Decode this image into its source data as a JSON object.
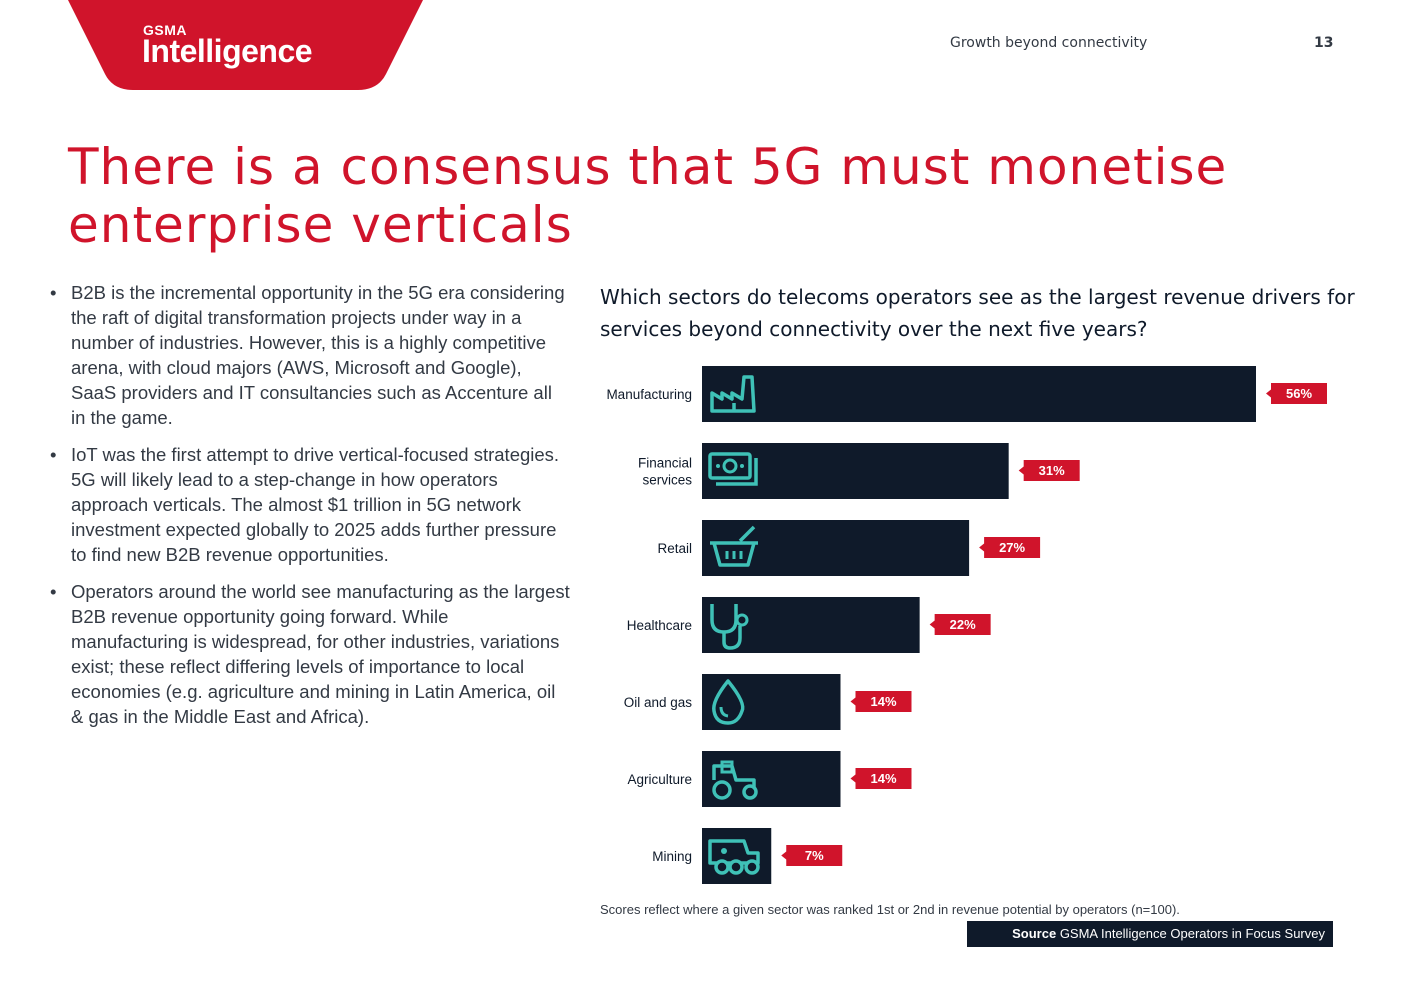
{
  "header": {
    "logo_top": "GSMA",
    "logo_bottom": "Intelligence",
    "section_title": "Growth beyond connectivity",
    "page_number": "13"
  },
  "colors": {
    "brand_red": "#d0142b",
    "bar_navy": "#0f1a2a",
    "icon_teal": "#3fc1b7"
  },
  "title": "There is a consensus that 5G must monetise enterprise verticals",
  "bullets": [
    "B2B is the incremental opportunity in the 5G era considering the raft of digital transformation projects under way in a number of industries. However, this is a highly competitive arena, with cloud majors (AWS, Microsoft and Google), SaaS providers and IT consultancies such as Accenture all in the game.",
    "IoT was the first attempt to drive vertical-focused strategies. 5G will likely lead to a step-change in how operators approach verticals. The almost $1 trillion in 5G network investment expected globally to 2025 adds further pressure to find new B2B revenue opportunities.",
    "Operators around the world see manufacturing as the largest B2B revenue opportunity going forward. While manufacturing is widespread, for other industries, variations exist; these reflect differing levels of importance to local economies (e.g. agriculture and mining in Latin America, oil & gas in the Middle East and Africa)."
  ],
  "chart_data": {
    "type": "bar",
    "orientation": "horizontal",
    "title": "Which sectors do telecoms operators see as the largest revenue drivers for services beyond connectivity over the next five years?",
    "categories": [
      "Manufacturing",
      "Financial services",
      "Retail",
      "Healthcare",
      "Oil and gas",
      "Agriculture",
      "Mining"
    ],
    "category_lines": [
      [
        "Manufacturing"
      ],
      [
        "Financial",
        "services"
      ],
      [
        "Retail"
      ],
      [
        "Healthcare"
      ],
      [
        "Oil and gas"
      ],
      [
        "Agriculture"
      ],
      [
        "Mining"
      ]
    ],
    "values": [
      56,
      31,
      27,
      22,
      14,
      14,
      7
    ],
    "value_labels": [
      "56%",
      "31%",
      "27%",
      "22%",
      "14%",
      "14%",
      "7%"
    ],
    "icons": [
      "factory-icon",
      "money-icon",
      "basket-icon",
      "stethoscope-icon",
      "oil-drop-icon",
      "tractor-icon",
      "mining-truck-icon"
    ],
    "xlim": [
      0,
      56
    ],
    "unit": "%",
    "footnote": "Scores reflect where a given sector was ranked 1st or 2nd in revenue potential by operators (n=100)."
  },
  "source": {
    "label": "Source",
    "text": "GSMA Intelligence Operators in Focus Survey"
  }
}
